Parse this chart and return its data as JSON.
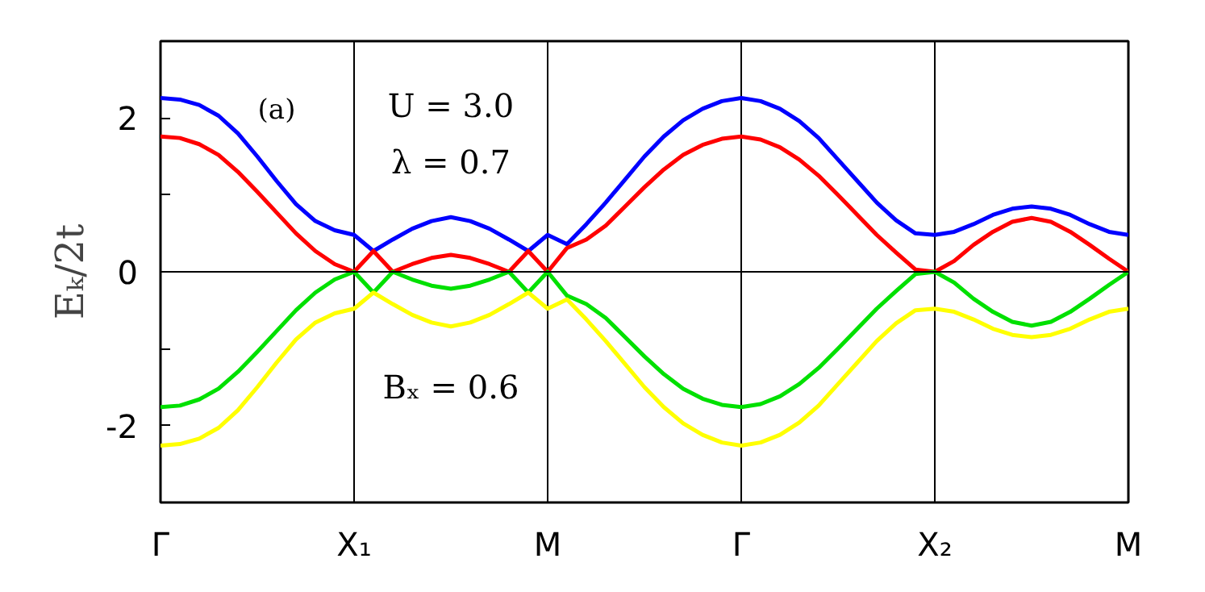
{
  "chart_data": {
    "type": "line",
    "ylabel": "Eₖ/2t",
    "categories": [
      "Γ",
      null,
      null,
      null,
      null,
      null,
      null,
      null,
      null,
      null,
      "X₁",
      null,
      null,
      null,
      null,
      null,
      null,
      null,
      null,
      null,
      "M",
      null,
      null,
      null,
      null,
      null,
      null,
      null,
      null,
      null,
      "Γ",
      null,
      null,
      null,
      null,
      null,
      null,
      null,
      null,
      null,
      "X₂",
      null,
      null,
      null,
      null,
      null,
      null,
      null,
      null,
      null,
      "M"
    ],
    "series": [
      {
        "color": "#0000ff",
        "values": [
          2.26,
          2.24,
          2.17,
          2.03,
          1.8,
          1.5,
          1.18,
          0.88,
          0.66,
          0.54,
          0.48,
          0.27,
          0.42,
          0.56,
          0.66,
          0.71,
          0.66,
          0.56,
          0.42,
          0.27,
          0.48,
          0.36,
          0.62,
          0.9,
          1.2,
          1.5,
          1.76,
          1.97,
          2.12,
          2.22,
          2.26,
          2.22,
          2.12,
          1.96,
          1.74,
          1.46,
          1.18,
          0.9,
          0.67,
          0.5,
          0.48,
          0.52,
          0.62,
          0.74,
          0.82,
          0.85,
          0.82,
          0.74,
          0.62,
          0.52,
          0.48
        ]
      },
      {
        "color": "#ff0000",
        "values": [
          1.76,
          1.74,
          1.66,
          1.52,
          1.3,
          1.04,
          0.77,
          0.5,
          0.27,
          0.1,
          0,
          0.27,
          0,
          0.1,
          0.18,
          0.22,
          0.18,
          0.1,
          0,
          0.27,
          0,
          0.31,
          0.42,
          0.6,
          0.85,
          1.1,
          1.33,
          1.52,
          1.65,
          1.73,
          1.76,
          1.72,
          1.62,
          1.46,
          1.25,
          1.0,
          0.74,
          0.48,
          0.25,
          0.03,
          0,
          0.14,
          0.35,
          0.52,
          0.65,
          0.7,
          0.65,
          0.52,
          0.35,
          0.17,
          0
        ]
      },
      {
        "color": "#00e000",
        "values": [
          -1.76,
          -1.74,
          -1.66,
          -1.52,
          -1.3,
          -1.04,
          -0.77,
          -0.5,
          -0.27,
          -0.1,
          0,
          -0.27,
          0,
          -0.1,
          -0.18,
          -0.22,
          -0.18,
          -0.1,
          0,
          -0.27,
          0,
          -0.31,
          -0.42,
          -0.6,
          -0.85,
          -1.1,
          -1.33,
          -1.52,
          -1.65,
          -1.73,
          -1.76,
          -1.72,
          -1.62,
          -1.46,
          -1.25,
          -1.0,
          -0.74,
          -0.48,
          -0.25,
          -0.03,
          0,
          -0.14,
          -0.35,
          -0.52,
          -0.65,
          -0.7,
          -0.65,
          -0.52,
          -0.35,
          -0.17,
          0
        ]
      },
      {
        "color": "#ffff00",
        "values": [
          -2.26,
          -2.24,
          -2.17,
          -2.03,
          -1.8,
          -1.5,
          -1.18,
          -0.88,
          -0.66,
          -0.54,
          -0.48,
          -0.27,
          -0.42,
          -0.56,
          -0.66,
          -0.71,
          -0.66,
          -0.56,
          -0.42,
          -0.27,
          -0.48,
          -0.36,
          -0.62,
          -0.9,
          -1.2,
          -1.5,
          -1.76,
          -1.97,
          -2.12,
          -2.22,
          -2.26,
          -2.22,
          -2.12,
          -1.96,
          -1.74,
          -1.46,
          -1.18,
          -0.9,
          -0.67,
          -0.5,
          -0.48,
          -0.52,
          -0.62,
          -0.74,
          -0.82,
          -0.85,
          -0.82,
          -0.74,
          -0.62,
          -0.52,
          -0.48
        ]
      }
    ],
    "ylim": [
      -3,
      3
    ],
    "yticks": [
      -2,
      {
        "value": -1,
        "label": null
      },
      0,
      {
        "value": 1,
        "label": null
      },
      2
    ],
    "ref_lines": [
      {
        "axis": "y",
        "value": 0,
        "color": "#000000"
      }
    ],
    "annotations": [
      "(a)",
      "U = 3.0",
      "λ = 0.7",
      "Bₓ = 0.6"
    ],
    "grid": "x",
    "marker": "none",
    "line_style": "solid"
  }
}
